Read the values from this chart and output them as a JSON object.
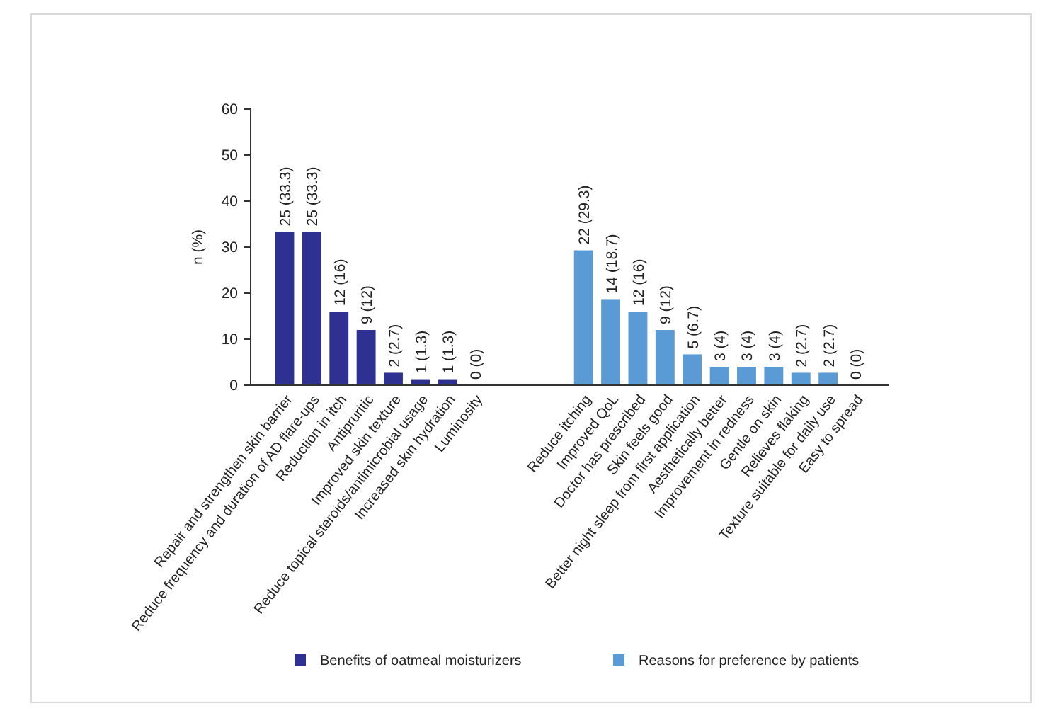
{
  "chart_data": {
    "type": "bar",
    "ylabel": "n (%)",
    "categories": [
      "Repair and strengthen skin barrier",
      "Reduce frequency and duration of AD flare-ups",
      "Reduction in itch",
      "Antipruritic",
      "Improved skin texture",
      "Reduce topical steroids/antimicrobial usage",
      "Increased skin hydration",
      "Luminosity",
      null,
      null,
      null,
      "Reduce itching",
      "Improved QoL",
      "Doctor has prescribed",
      "Skin feels good",
      "Better night sleep from first application",
      "Aesthetically better",
      "Improvement in redness",
      "Gentle on skin",
      "Relieves flaking",
      "Texture suitable for daily use",
      "Easy to spread"
    ],
    "series": [
      {
        "name": "Benefits of oatmeal moisturizers",
        "color": "#2e3192",
        "values": [
          33.3,
          33.3,
          16,
          12,
          2.7,
          1.3,
          1.3,
          0,
          null,
          null,
          null,
          null,
          null,
          null,
          null,
          null,
          null,
          null,
          null,
          null,
          null,
          null
        ],
        "value_labels": [
          "25 (33.3)",
          "25 (33.3)",
          "12 (16)",
          "9 (12)",
          "2 (2.7)",
          "1 (1.3)",
          "1 (1.3)",
          "0 (0)",
          null,
          null,
          null,
          null,
          null,
          null,
          null,
          null,
          null,
          null,
          null,
          null,
          null,
          null
        ]
      },
      {
        "name": "Reasons for preference by patients",
        "color": "#5b9bd5",
        "values": [
          null,
          null,
          null,
          null,
          null,
          null,
          null,
          null,
          null,
          null,
          null,
          29.3,
          18.7,
          16,
          12,
          6.7,
          4,
          4,
          4,
          2.7,
          2.7,
          0
        ],
        "value_labels": [
          null,
          null,
          null,
          null,
          null,
          null,
          null,
          null,
          null,
          null,
          null,
          "22 (29.3)",
          "14 (18.7)",
          "12 (16)",
          "9 (12)",
          "5 (6.7)",
          "3 (4)",
          "3 (4)",
          "3 (4)",
          "2 (2.7)",
          "2 (2.7)",
          "0 (0)"
        ]
      }
    ],
    "ylim": [
      0,
      60
    ],
    "yticks": [
      0,
      10,
      20,
      30,
      40,
      50,
      60
    ],
    "grid": false,
    "legend": "bottom"
  }
}
